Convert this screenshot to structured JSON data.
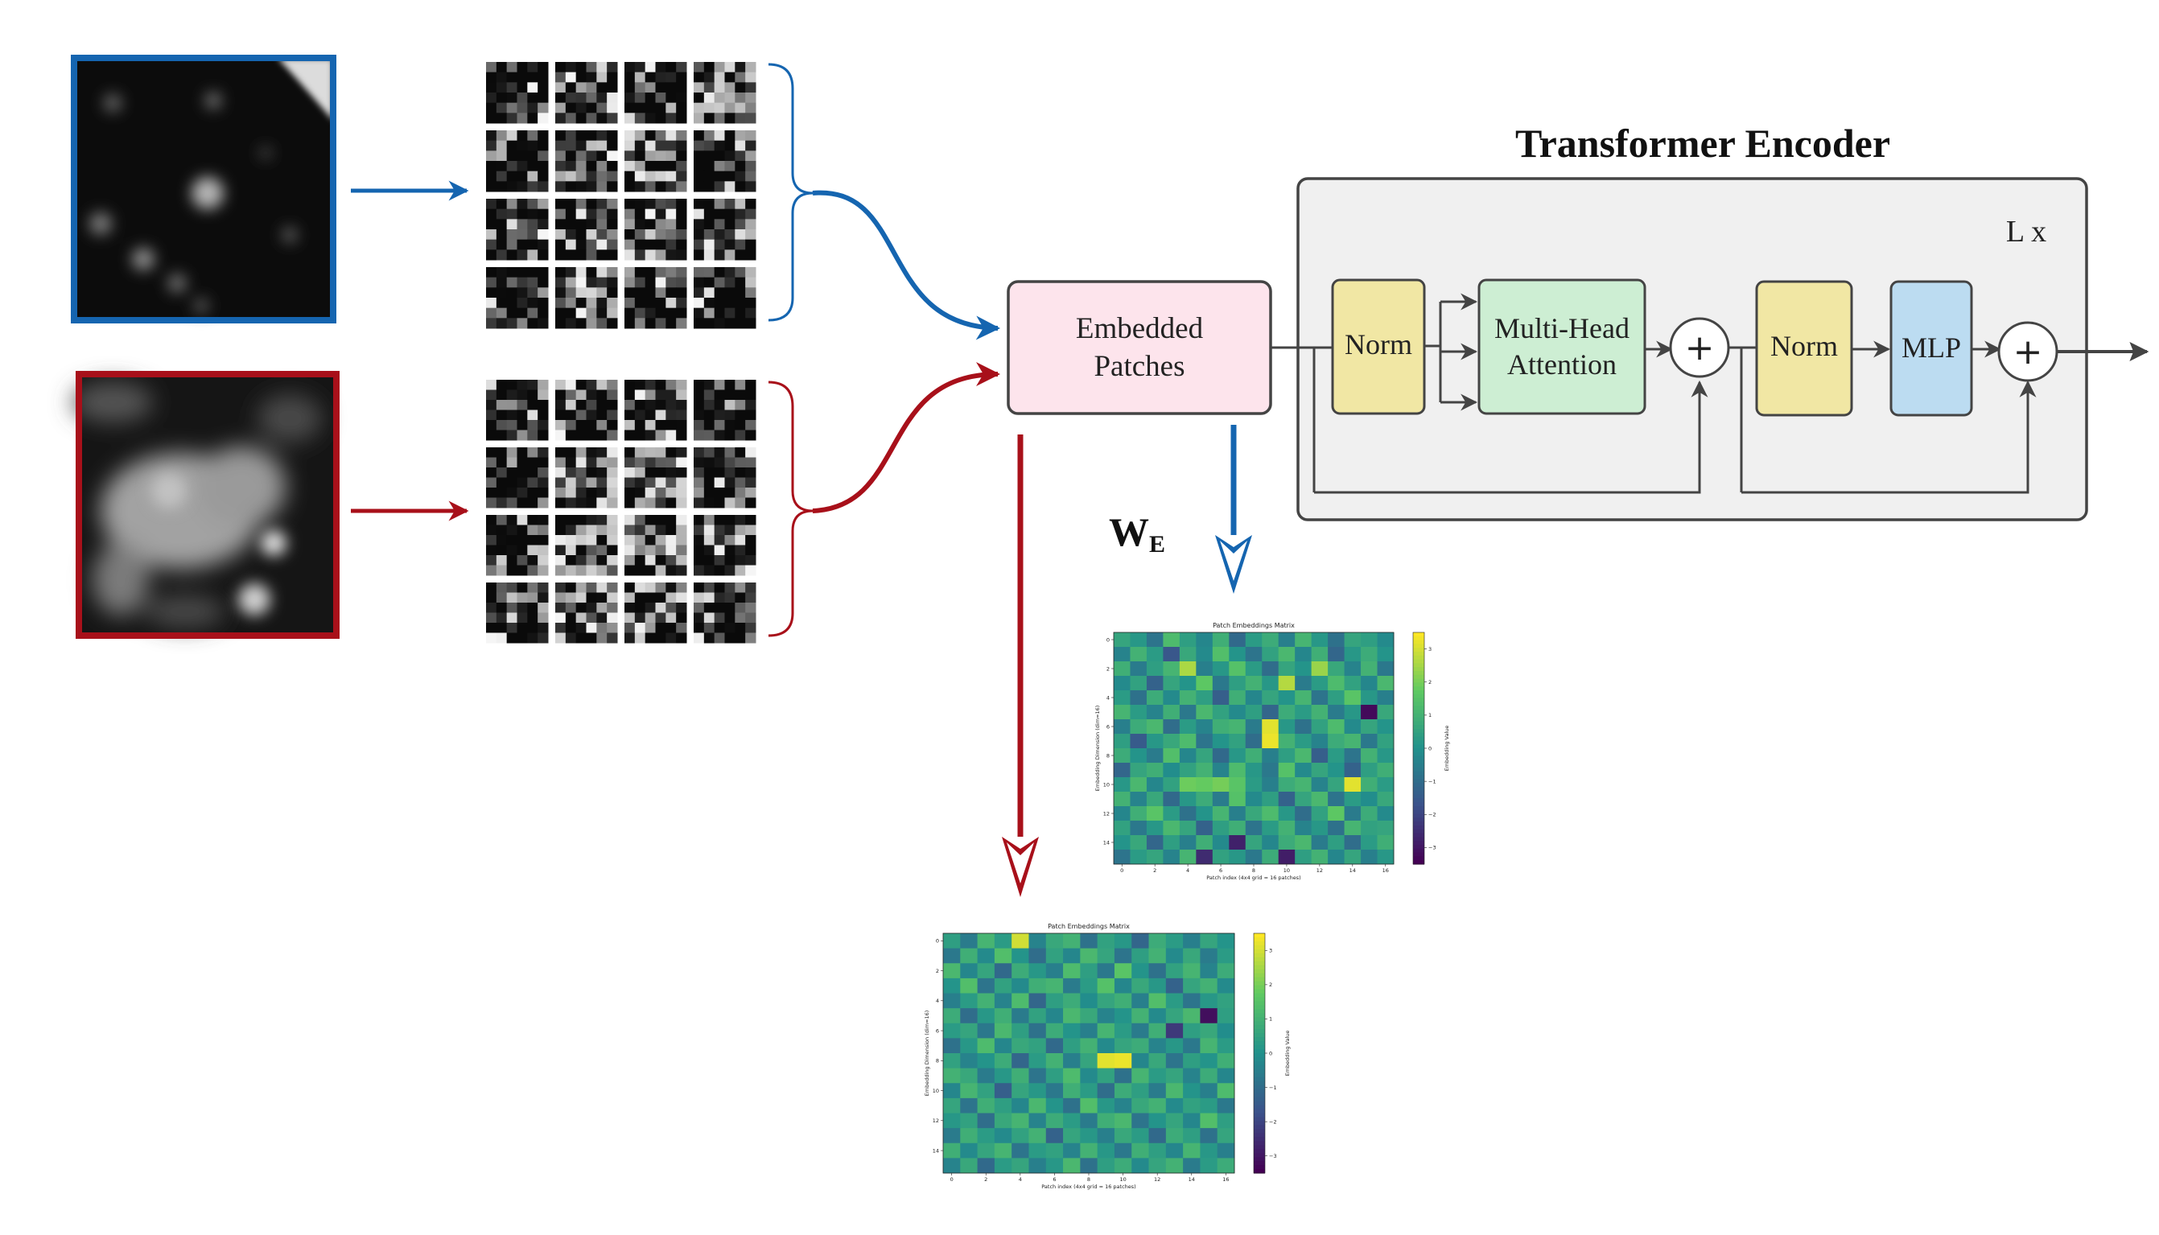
{
  "encoder": {
    "title": "Transformer Encoder",
    "repeat": "L x",
    "norm1": "Norm",
    "mha_line1": "Multi-Head",
    "mha_line2": "Attention",
    "norm2": "Norm",
    "mlp": "MLP",
    "plus": "+"
  },
  "embedded": {
    "line1": "Embedded",
    "line2": "Patches"
  },
  "weight_label": {
    "main": "W",
    "sub": "E"
  },
  "colors": {
    "blue": "#1565b0",
    "red": "#a8101a",
    "embedded_fill": "#fde4ec",
    "norm_fill": "#f1e7a4",
    "mha_fill": "#cdeed3",
    "mlp_fill": "#bcdcf1",
    "encoder_fill": "#f0f0f0",
    "dark": "#444444"
  },
  "chart_data": [
    {
      "type": "heatmap",
      "title": "Patch Embeddings Matrix",
      "xlabel": "Patch index (4x4 grid = 16 patches)",
      "ylabel": "Embedding Dimension (dim=16)",
      "colorbar_label": "Embedding Value",
      "x_ticks": [
        "0",
        "2",
        "4",
        "6",
        "8",
        "10",
        "12",
        "14",
        "16"
      ],
      "y_ticks": [
        "0",
        "2",
        "4",
        "6",
        "8",
        "10",
        "12",
        "14"
      ],
      "cbar_ticks": [
        "3",
        "2",
        "1",
        "0",
        "−1",
        "−2",
        "−3"
      ],
      "colormap": "viridis",
      "vrange": [
        -3.5,
        3.5
      ],
      "values": [
        [
          0.6,
          0.2,
          -0.8,
          1.3,
          0.4,
          -0.3,
          0.9,
          -1.1,
          0.3,
          0.8,
          -0.5,
          1.1,
          0.2,
          -0.9,
          0.6,
          0.4,
          -0.2
        ],
        [
          -0.4,
          1.0,
          0.3,
          -1.6,
          0.7,
          -0.2,
          1.4,
          0.1,
          -0.8,
          0.5,
          1.2,
          -0.3,
          0.9,
          -1.2,
          0.2,
          0.8,
          0.1
        ],
        [
          0.9,
          -0.6,
          0.4,
          1.1,
          2.6,
          -0.5,
          0.2,
          1.5,
          0.3,
          -1.0,
          0.6,
          0.1,
          2.4,
          0.7,
          -0.4,
          1.0,
          -0.7
        ],
        [
          -0.2,
          0.5,
          -1.3,
          0.6,
          0.1,
          1.7,
          -0.7,
          0.4,
          1.0,
          0.2,
          2.7,
          -0.6,
          0.3,
          1.3,
          0.5,
          -0.3,
          1.2
        ],
        [
          0.3,
          -0.9,
          0.8,
          -0.2,
          1.0,
          0.4,
          -1.4,
          0.9,
          -0.3,
          0.6,
          0.1,
          1.1,
          -0.8,
          0.4,
          1.6,
          0.2,
          -0.5
        ],
        [
          1.1,
          0.3,
          -0.4,
          0.9,
          -0.7,
          1.2,
          0.5,
          -0.2,
          0.4,
          -1.2,
          0.8,
          0.3,
          1.0,
          -0.6,
          0.2,
          -3.3,
          0.7
        ],
        [
          -0.5,
          0.8,
          1.2,
          -1.0,
          0.3,
          -0.4,
          0.9,
          1.1,
          -0.6,
          3.2,
          0.2,
          -0.9,
          0.5,
          1.3,
          -0.2,
          0.6,
          0.1
        ],
        [
          0.4,
          -1.5,
          0.2,
          0.7,
          1.3,
          -0.8,
          0.1,
          0.5,
          -1.0,
          3.3,
          1.0,
          0.3,
          -0.4,
          0.8,
          1.1,
          -0.7,
          0.5
        ],
        [
          0.8,
          0.1,
          -0.6,
          1.4,
          -0.3,
          0.6,
          -1.1,
          0.2,
          0.9,
          -0.5,
          0.4,
          1.2,
          -1.4,
          0.3,
          -0.8,
          1.0,
          0.2
        ],
        [
          -1.2,
          0.6,
          0.9,
          -0.1,
          0.5,
          1.0,
          -0.4,
          1.3,
          0.2,
          -0.7,
          1.5,
          -0.2,
          0.6,
          0.1,
          -1.3,
          0.4,
          0.9
        ],
        [
          0.2,
          1.2,
          -0.3,
          0.5,
          1.9,
          1.8,
          2.0,
          1.6,
          0.3,
          -0.5,
          0.8,
          1.1,
          -0.4,
          0.6,
          3.2,
          0.9,
          0.3
        ],
        [
          1.0,
          -0.4,
          0.7,
          -1.1,
          0.2,
          0.8,
          -0.6,
          1.5,
          -0.2,
          0.4,
          -1.3,
          0.6,
          1.2,
          -0.8,
          0.3,
          -0.1,
          0.7
        ],
        [
          -0.3,
          0.9,
          1.6,
          0.3,
          -0.9,
          0.1,
          1.1,
          -0.5,
          0.7,
          1.3,
          0.2,
          -1.0,
          0.5,
          1.7,
          -0.6,
          0.8,
          -0.2
        ],
        [
          0.5,
          -0.7,
          0.2,
          1.2,
          0.6,
          -1.3,
          0.4,
          0.9,
          -0.8,
          0.3,
          1.0,
          -0.4,
          0.2,
          -0.9,
          1.1,
          0.5,
          0.6
        ],
        [
          0.1,
          0.7,
          -1.2,
          0.4,
          -0.5,
          0.9,
          -0.2,
          -2.8,
          0.6,
          -0.3,
          0.8,
          1.2,
          -0.6,
          0.4,
          -1.0,
          0.3,
          0.9
        ],
        [
          -0.8,
          0.3,
          0.6,
          -0.4,
          1.1,
          -2.6,
          0.5,
          0.2,
          -0.7,
          0.8,
          -2.9,
          0.4,
          1.0,
          -0.3,
          0.6,
          -0.5,
          0.2
        ]
      ]
    },
    {
      "type": "heatmap",
      "title": "Patch Embeddings Matrix",
      "xlabel": "Patch index (4x4 grid = 16 patches)",
      "ylabel": "Embedding Dimension (dim=16)",
      "colorbar_label": "Embedding Value",
      "x_ticks": [
        "0",
        "2",
        "4",
        "6",
        "8",
        "10",
        "12",
        "14",
        "16"
      ],
      "y_ticks": [
        "0",
        "2",
        "4",
        "6",
        "8",
        "10",
        "12",
        "14"
      ],
      "cbar_ticks": [
        "3",
        "2",
        "1",
        "0",
        "−1",
        "−2",
        "−3"
      ],
      "colormap": "viridis",
      "vrange": [
        -3.5,
        3.5
      ],
      "values": [
        [
          0.4,
          -0.6,
          1.1,
          0.3,
          3.0,
          -0.4,
          0.7,
          1.0,
          -0.9,
          0.5,
          0.2,
          -1.2,
          0.8,
          0.3,
          -0.5,
          0.6,
          0.1
        ],
        [
          -0.7,
          0.9,
          -0.2,
          1.4,
          0.1,
          -1.0,
          0.5,
          -0.3,
          1.2,
          0.6,
          -0.8,
          0.4,
          1.0,
          -0.2,
          0.7,
          -0.6,
          0.3
        ],
        [
          1.2,
          -0.3,
          0.6,
          -1.1,
          0.8,
          0.2,
          -0.5,
          1.3,
          0.4,
          -0.7,
          1.6,
          0.1,
          -0.9,
          0.5,
          1.1,
          -0.4,
          0.8
        ],
        [
          0.1,
          1.4,
          -0.8,
          0.5,
          -0.2,
          0.9,
          1.1,
          -0.6,
          0.3,
          1.5,
          -0.3,
          0.7,
          0.2,
          -1.3,
          0.6,
          1.0,
          -0.2
        ],
        [
          -0.5,
          0.3,
          1.0,
          -0.4,
          1.3,
          -1.2,
          0.4,
          0.8,
          -0.1,
          0.6,
          0.9,
          -0.5,
          1.4,
          0.3,
          -0.8,
          0.2,
          0.5
        ],
        [
          0.8,
          -1.0,
          0.2,
          0.9,
          -0.6,
          0.5,
          -0.3,
          1.2,
          0.7,
          -0.4,
          0.1,
          1.0,
          -0.2,
          0.6,
          1.2,
          -3.2,
          0.4
        ],
        [
          0.3,
          0.6,
          -0.7,
          1.2,
          0.4,
          -0.9,
          0.8,
          0.1,
          -0.5,
          1.1,
          0.3,
          -0.6,
          0.9,
          -2.3,
          0.4,
          0.7,
          -0.1
        ],
        [
          -0.9,
          0.2,
          1.3,
          -0.3,
          0.7,
          0.5,
          -1.1,
          0.4,
          1.0,
          -0.2,
          0.6,
          0.8,
          -0.4,
          0.2,
          -0.7,
          1.1,
          0.3
        ],
        [
          0.5,
          -0.4,
          0.1,
          0.8,
          -1.2,
          0.3,
          1.0,
          -0.5,
          0.6,
          3.2,
          3.3,
          -0.3,
          0.7,
          -0.8,
          0.4,
          0.1,
          0.9
        ],
        [
          1.0,
          0.7,
          -0.6,
          0.2,
          0.9,
          -0.8,
          0.4,
          1.3,
          -0.2,
          0.5,
          -0.9,
          1.1,
          0.3,
          0.6,
          -0.4,
          0.8,
          -0.3
        ],
        [
          -0.3,
          1.1,
          0.5,
          -1.4,
          0.6,
          0.2,
          -0.7,
          0.9,
          0.3,
          -1.0,
          0.8,
          0.4,
          -0.6,
          1.2,
          0.1,
          -0.5,
          1.3
        ],
        [
          0.6,
          -0.8,
          0.9,
          0.4,
          -0.3,
          1.2,
          0.1,
          -0.9,
          1.4,
          0.2,
          -0.4,
          0.7,
          1.0,
          -0.2,
          0.5,
          0.3,
          -0.7
        ],
        [
          0.2,
          0.5,
          -1.0,
          0.7,
          1.1,
          -0.4,
          0.8,
          0.3,
          -0.6,
          0.9,
          1.2,
          -0.8,
          0.1,
          0.6,
          -0.3,
          1.4,
          0.4
        ],
        [
          -0.6,
          0.9,
          0.3,
          -0.2,
          0.5,
          1.0,
          -1.3,
          0.6,
          0.2,
          -0.5,
          0.7,
          0.3,
          -1.1,
          0.8,
          0.4,
          -0.9,
          0.6
        ],
        [
          0.9,
          -0.2,
          0.6,
          1.1,
          -0.8,
          0.3,
          0.5,
          -0.4,
          1.0,
          0.2,
          -0.7,
          0.9,
          0.4,
          -0.3,
          1.1,
          0.2,
          -0.5
        ],
        [
          -0.4,
          0.7,
          -1.1,
          0.3,
          0.6,
          -0.5,
          0.2,
          1.2,
          -0.9,
          0.4,
          0.8,
          -0.2,
          0.6,
          1.0,
          -0.6,
          0.3,
          0.8
        ]
      ]
    }
  ]
}
